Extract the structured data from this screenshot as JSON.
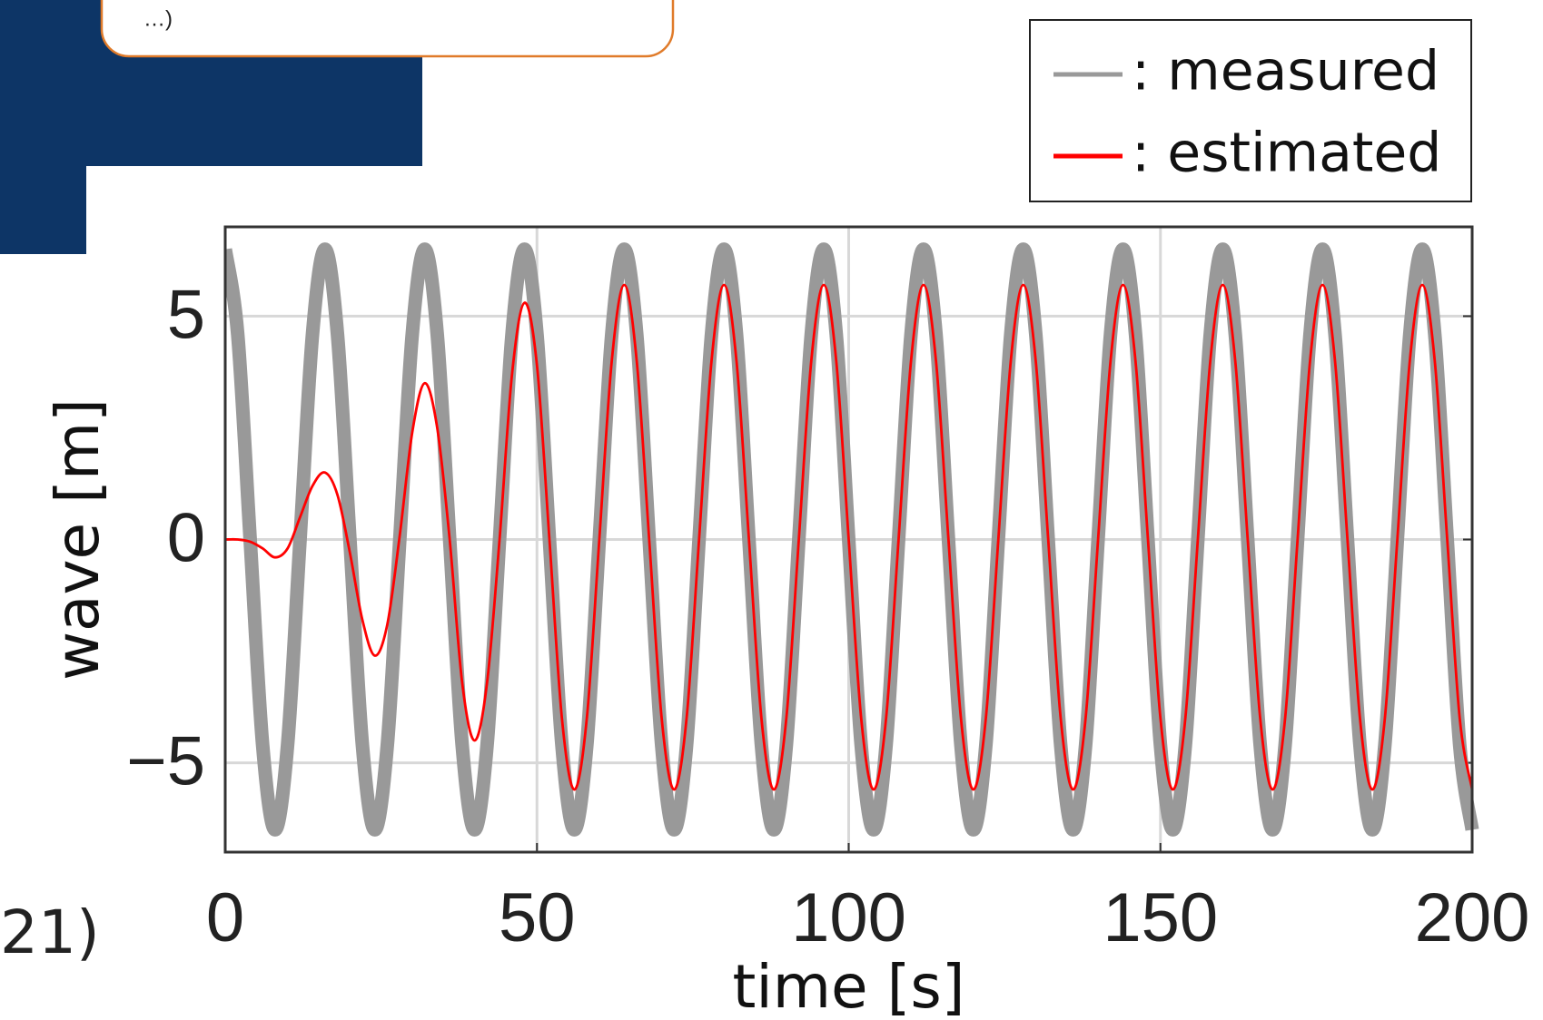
{
  "other_texts": [
    "…)",
    "21)"
  ],
  "chart_data": {
    "type": "line",
    "x_label": "time [s]",
    "y_label": "wave [m]",
    "xlim": [
      0,
      200
    ],
    "xticks": [
      0,
      50,
      100,
      150,
      200
    ],
    "ylim": [
      -7,
      7
    ],
    "yticks": [
      {
        "value": -5,
        "label": "−5"
      },
      0,
      5
    ],
    "grid": true,
    "legend": "top-right",
    "x": [
      0,
      2,
      4,
      6,
      8,
      10,
      12,
      14,
      16,
      18,
      20,
      22,
      24,
      26,
      28,
      30,
      32,
      34,
      36,
      38,
      40,
      42,
      44,
      46,
      48,
      50,
      52,
      54,
      56,
      58,
      60,
      62,
      64,
      66,
      68,
      70,
      72,
      74,
      76,
      78,
      80,
      82,
      84,
      86,
      88,
      90,
      92,
      94,
      96,
      98,
      100,
      102,
      104,
      106,
      108,
      110,
      112,
      114,
      116,
      118,
      120,
      122,
      124,
      126,
      128,
      130,
      132,
      134,
      136,
      138,
      140,
      142,
      144,
      146,
      148,
      150,
      152,
      154,
      156,
      158,
      160,
      162,
      164,
      166,
      168,
      170,
      172,
      174,
      176,
      178,
      180,
      182,
      184,
      186,
      188,
      190,
      192,
      194,
      196,
      198,
      200
    ],
    "series": [
      {
        "name": ": measured",
        "color": "#999999",
        "values": [
          6.5,
          4.6,
          0,
          -4.6,
          -6.5,
          -4.6,
          0,
          4.6,
          6.5,
          4.6,
          0,
          -4.6,
          -6.5,
          -4.6,
          0,
          4.6,
          6.5,
          4.6,
          0,
          -4.6,
          -6.5,
          -4.6,
          0,
          4.6,
          6.5,
          4.6,
          0,
          -4.6,
          -6.5,
          -4.6,
          0,
          4.6,
          6.5,
          4.6,
          0,
          -4.6,
          -6.5,
          -4.6,
          0,
          4.6,
          6.5,
          4.6,
          0,
          -4.6,
          -6.5,
          -4.6,
          0,
          4.6,
          6.5,
          4.6,
          0,
          -4.6,
          -6.5,
          -4.6,
          0,
          4.6,
          6.5,
          4.6,
          0,
          -4.6,
          -6.5,
          -4.6,
          0,
          4.6,
          6.5,
          4.6,
          0,
          -4.6,
          -6.5,
          -4.6,
          0,
          4.6,
          6.5,
          4.6,
          0,
          -4.6,
          -6.5,
          -4.6,
          0,
          4.6,
          6.5,
          4.6,
          0,
          -4.6,
          -6.5,
          -4.6,
          0,
          4.6,
          6.5,
          4.6,
          0,
          -4.6,
          -6.5,
          -4.6,
          0,
          4.6,
          6.5,
          4.6,
          0,
          -4.6,
          -6.5
        ]
      },
      {
        "name": ": estimated",
        "color": "#ff0000",
        "values": [
          0,
          0,
          -0.05,
          -0.2,
          -0.4,
          -0.2,
          0.5,
          1.2,
          1.5,
          1.0,
          -0.3,
          -1.8,
          -2.6,
          -1.9,
          0.1,
          2.4,
          3.5,
          2.5,
          0,
          -3.2,
          -4.5,
          -3.2,
          0,
          3.7,
          5.3,
          3.9,
          0,
          -4.0,
          -5.6,
          -4.0,
          0,
          4.0,
          5.7,
          4.0,
          0,
          -4.0,
          -5.6,
          -4.0,
          0,
          4.0,
          5.7,
          4.0,
          0,
          -4.0,
          -5.6,
          -4.0,
          0,
          4.0,
          5.7,
          4.0,
          0,
          -4.0,
          -5.6,
          -4.0,
          0,
          4.0,
          5.7,
          4.0,
          0,
          -4.0,
          -5.6,
          -4.0,
          0,
          4.0,
          5.7,
          4.0,
          0,
          -4.0,
          -5.6,
          -4.0,
          0,
          4.0,
          5.7,
          4.0,
          0,
          -4.0,
          -5.6,
          -4.0,
          0,
          4.0,
          5.7,
          4.0,
          0,
          -4.0,
          -5.6,
          -4.0,
          0,
          4.0,
          5.7,
          4.0,
          0,
          -4.0,
          -5.6,
          -4.0,
          0,
          4.0,
          5.7,
          4.0,
          0,
          -4.0,
          -5.6
        ]
      }
    ]
  }
}
